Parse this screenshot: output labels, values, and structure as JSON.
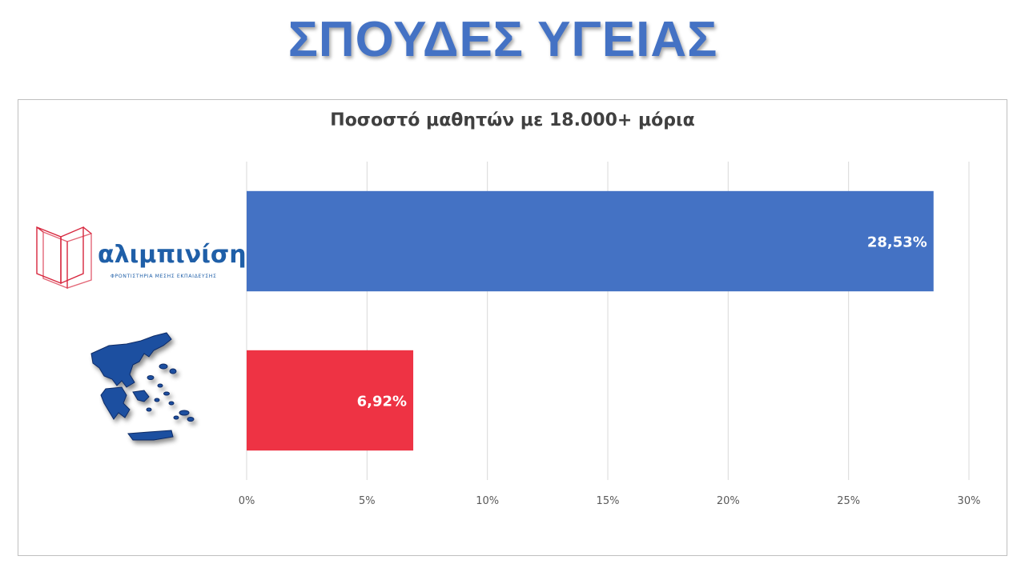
{
  "slide": {
    "title": "ΣΠΟΥΔΕΣ ΥΓΕΙΑΣ"
  },
  "logo": {
    "name": "αλιμπινίσης",
    "subtitle": "ΦΡΟΝΤΙΣΤΗΡΙΑ ΜΕΣΗΣ ΕΚΠΑΙΔΕΥΣΗΣ"
  },
  "chart_data": {
    "type": "bar",
    "orientation": "horizontal",
    "title": "Ποσοστό μαθητών με 18.000+ μόρια",
    "categories": [
      "αλιμπινίσης",
      "Ελλάδα"
    ],
    "values": [
      28.53,
      6.92
    ],
    "value_labels": [
      "28,53%",
      "6,92%"
    ],
    "bar_colors": [
      "#4472C4",
      "#EE3344"
    ],
    "xlim": [
      0,
      30
    ],
    "xticks": [
      0,
      5,
      10,
      15,
      20,
      25,
      30
    ],
    "xtick_labels": [
      "0%",
      "5%",
      "10%",
      "15%",
      "20%",
      "25%",
      "30%"
    ],
    "grid": true,
    "legend": "none"
  },
  "colors": {
    "title": "#4472C4",
    "gridline": "#d9d9d9",
    "tick_text": "#595959"
  }
}
